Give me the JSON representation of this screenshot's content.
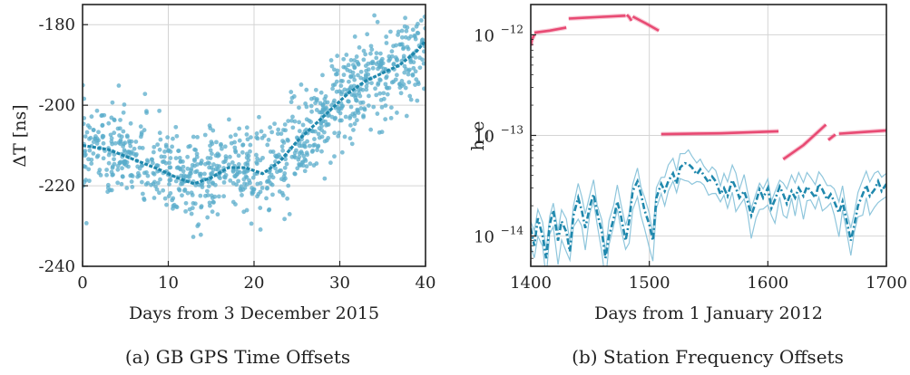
{
  "colors": {
    "scatter": "#5aaccb",
    "trend": "#1f88ad",
    "station_high": "#e84a73",
    "station_low": "#1f88ad",
    "station_low_band": "#8fc6dc",
    "grid": "#d4d4d4",
    "frame": "#222222"
  },
  "chart_data": [
    {
      "id": "a",
      "type": "scatter",
      "caption": "(a) GB GPS Time Offsets",
      "xlabel": "Days from 3 December 2015",
      "ylabel": "ΔT [ns]",
      "xlim": [
        0,
        40
      ],
      "ylim": [
        -240,
        -175
      ],
      "xticks": [
        0,
        10,
        20,
        30,
        40
      ],
      "yticks": [
        -240,
        -220,
        -200,
        -180
      ],
      "grid": true,
      "series": [
        {
          "style": "scatter",
          "points_per_day": 25,
          "noise_sd": 5.5,
          "trend": {
            "x": [
              0,
              3,
              6,
              9,
              11,
              13,
              15,
              17,
              19,
              21,
              23,
              25,
              27,
              29,
              31,
              33,
              35,
              37,
              39,
              40
            ],
            "y": [
              -210,
              -211,
              -213.5,
              -216,
              -218,
              -219.5,
              -218,
              -215.5,
              -215.5,
              -217,
              -214,
              -209,
              -205,
              -201,
              -197,
              -194,
              -192,
              -190,
              -186.5,
              -184
            ]
          }
        },
        {
          "style": "line",
          "x": [
            0,
            3,
            6,
            9,
            11,
            13,
            15,
            17,
            19,
            21,
            23,
            25,
            27,
            29,
            31,
            33,
            35,
            37,
            39,
            40
          ],
          "y": [
            -210,
            -211,
            -213.5,
            -216,
            -218,
            -219.5,
            -218,
            -215.5,
            -215.5,
            -217,
            -214,
            -209,
            -205,
            -201,
            -197,
            -194,
            -192,
            -190,
            -186.5,
            -184
          ]
        }
      ]
    },
    {
      "id": "b",
      "type": "line",
      "caption": "(b) Station Frequency Offsets",
      "xlabel": "Days from 1 January 2012",
      "ylabel": "h_e",
      "yscale": "log",
      "xlim": [
        1400,
        1700
      ],
      "ylim": [
        5e-15,
        2e-12
      ],
      "xticks": [
        1400,
        1500,
        1600,
        1700
      ],
      "yticks": [
        1e-14,
        1e-13,
        1e-12
      ],
      "ytick_labels": [
        "10",
        "10",
        "10"
      ],
      "ytick_exponents": [
        "−14",
        "−13",
        "−12"
      ],
      "grid": true,
      "series": [
        {
          "style": "line",
          "segments": [
            {
              "x": [
                1400,
                1401,
                1403
              ],
              "y": [
                7.8e-13,
                9e-13,
                1e-12
              ]
            },
            {
              "x": [
                1403,
                1416,
                1430
              ],
              "y": [
                1.05e-12,
                1.1e-12,
                1.18e-12
              ]
            },
            {
              "x": [
                1432,
                1456,
                1480
              ],
              "y": [
                1.45e-12,
                1.5e-12,
                1.55e-12
              ]
            },
            {
              "x": [
                1481,
                1483,
                1485
              ],
              "y": [
                1.58e-12,
                1.5e-12,
                1.38e-12
              ]
            },
            {
              "x": [
                1486,
                1497,
                1508
              ],
              "y": [
                1.52e-12,
                1.3e-12,
                1.1e-12
              ]
            },
            {
              "x": [
                1510,
                1560,
                1609
              ],
              "y": [
                1.03e-13,
                1.05e-13,
                1.1e-13
              ]
            },
            {
              "x": [
                1613,
                1630,
                1649
              ],
              "y": [
                5.8e-14,
                8e-14,
                1.28e-13
              ]
            },
            {
              "x": [
                1651,
                1655,
                1657
              ],
              "y": [
                9e-14,
                9.8e-14,
                1.02e-13
              ]
            },
            {
              "x": [
                1660,
                1680,
                1700
              ],
              "y": [
                1.04e-13,
                1.08e-13,
                1.12e-13
              ]
            }
          ]
        },
        {
          "style": "line",
          "x": [
            1400,
            1403,
            1406,
            1410,
            1413,
            1416,
            1419,
            1423,
            1426,
            1430,
            1433,
            1436,
            1440,
            1443,
            1446,
            1450,
            1453,
            1456,
            1460,
            1463,
            1466,
            1470,
            1473,
            1476,
            1480,
            1483,
            1486,
            1490,
            1493,
            1496,
            1500,
            1503,
            1506,
            1510,
            1513,
            1516,
            1520,
            1523,
            1526,
            1530,
            1533,
            1536,
            1540,
            1543,
            1546,
            1550,
            1553,
            1556,
            1560,
            1563,
            1566,
            1570,
            1573,
            1576,
            1580,
            1583,
            1586,
            1590,
            1593,
            1596,
            1600,
            1603,
            1606,
            1610,
            1613,
            1616,
            1620,
            1623,
            1626,
            1630,
            1633,
            1636,
            1640,
            1643,
            1646,
            1650,
            1653,
            1656,
            1660,
            1663,
            1666,
            1670,
            1673,
            1676,
            1680,
            1683,
            1686,
            1690,
            1693,
            1696,
            1700
          ],
          "y": [
            1.2e-14,
            8e-15,
            1.5e-14,
            1e-14,
            6e-15,
            1.3e-14,
            1.8e-14,
            9e-15,
            1.4e-14,
            1.1e-14,
            7e-15,
            1.6e-14,
            2.4e-14,
            1.8e-14,
            1.2e-14,
            2e-14,
            2.6e-14,
            1.7e-14,
            1.1e-14,
            6e-15,
            1e-14,
            1.5e-14,
            2.2e-14,
            1.6e-14,
            9e-15,
            1.4e-14,
            2.8e-14,
            3.5e-14,
            2.6e-14,
            1.8e-14,
            1.3e-14,
            9e-15,
            2.4e-14,
            3.3e-14,
            2.8e-14,
            3.5e-14,
            4.2e-14,
            3.3e-14,
            4.8e-14,
            5.3e-14,
            5.2e-14,
            4.8e-14,
            4.1e-14,
            4.6e-14,
            4e-14,
            3.4e-14,
            3.9e-14,
            3.5e-14,
            2.6e-14,
            3e-14,
            2.5e-14,
            3.6e-14,
            3e-14,
            2.4e-14,
            2.8e-14,
            2.2e-14,
            1.6e-14,
            2.2e-14,
            2.9e-14,
            2.4e-14,
            3e-14,
            1.9e-14,
            2.3e-14,
            3.1e-14,
            2.6e-14,
            2.1e-14,
            2.8e-14,
            2.4e-14,
            3e-14,
            2.5e-14,
            3.1e-14,
            2.8e-14,
            2.4e-14,
            3.3e-14,
            2.9e-14,
            2.3e-14,
            2.6e-14,
            2.2e-14,
            1.7e-14,
            2.2e-14,
            1.5e-14,
            9e-15,
            1.3e-14,
            2e-14,
            2.6e-14,
            3.2e-14,
            2.5e-14,
            2.9e-14,
            3.5e-14,
            2.8e-14,
            3.3e-14
          ]
        }
      ]
    }
  ]
}
